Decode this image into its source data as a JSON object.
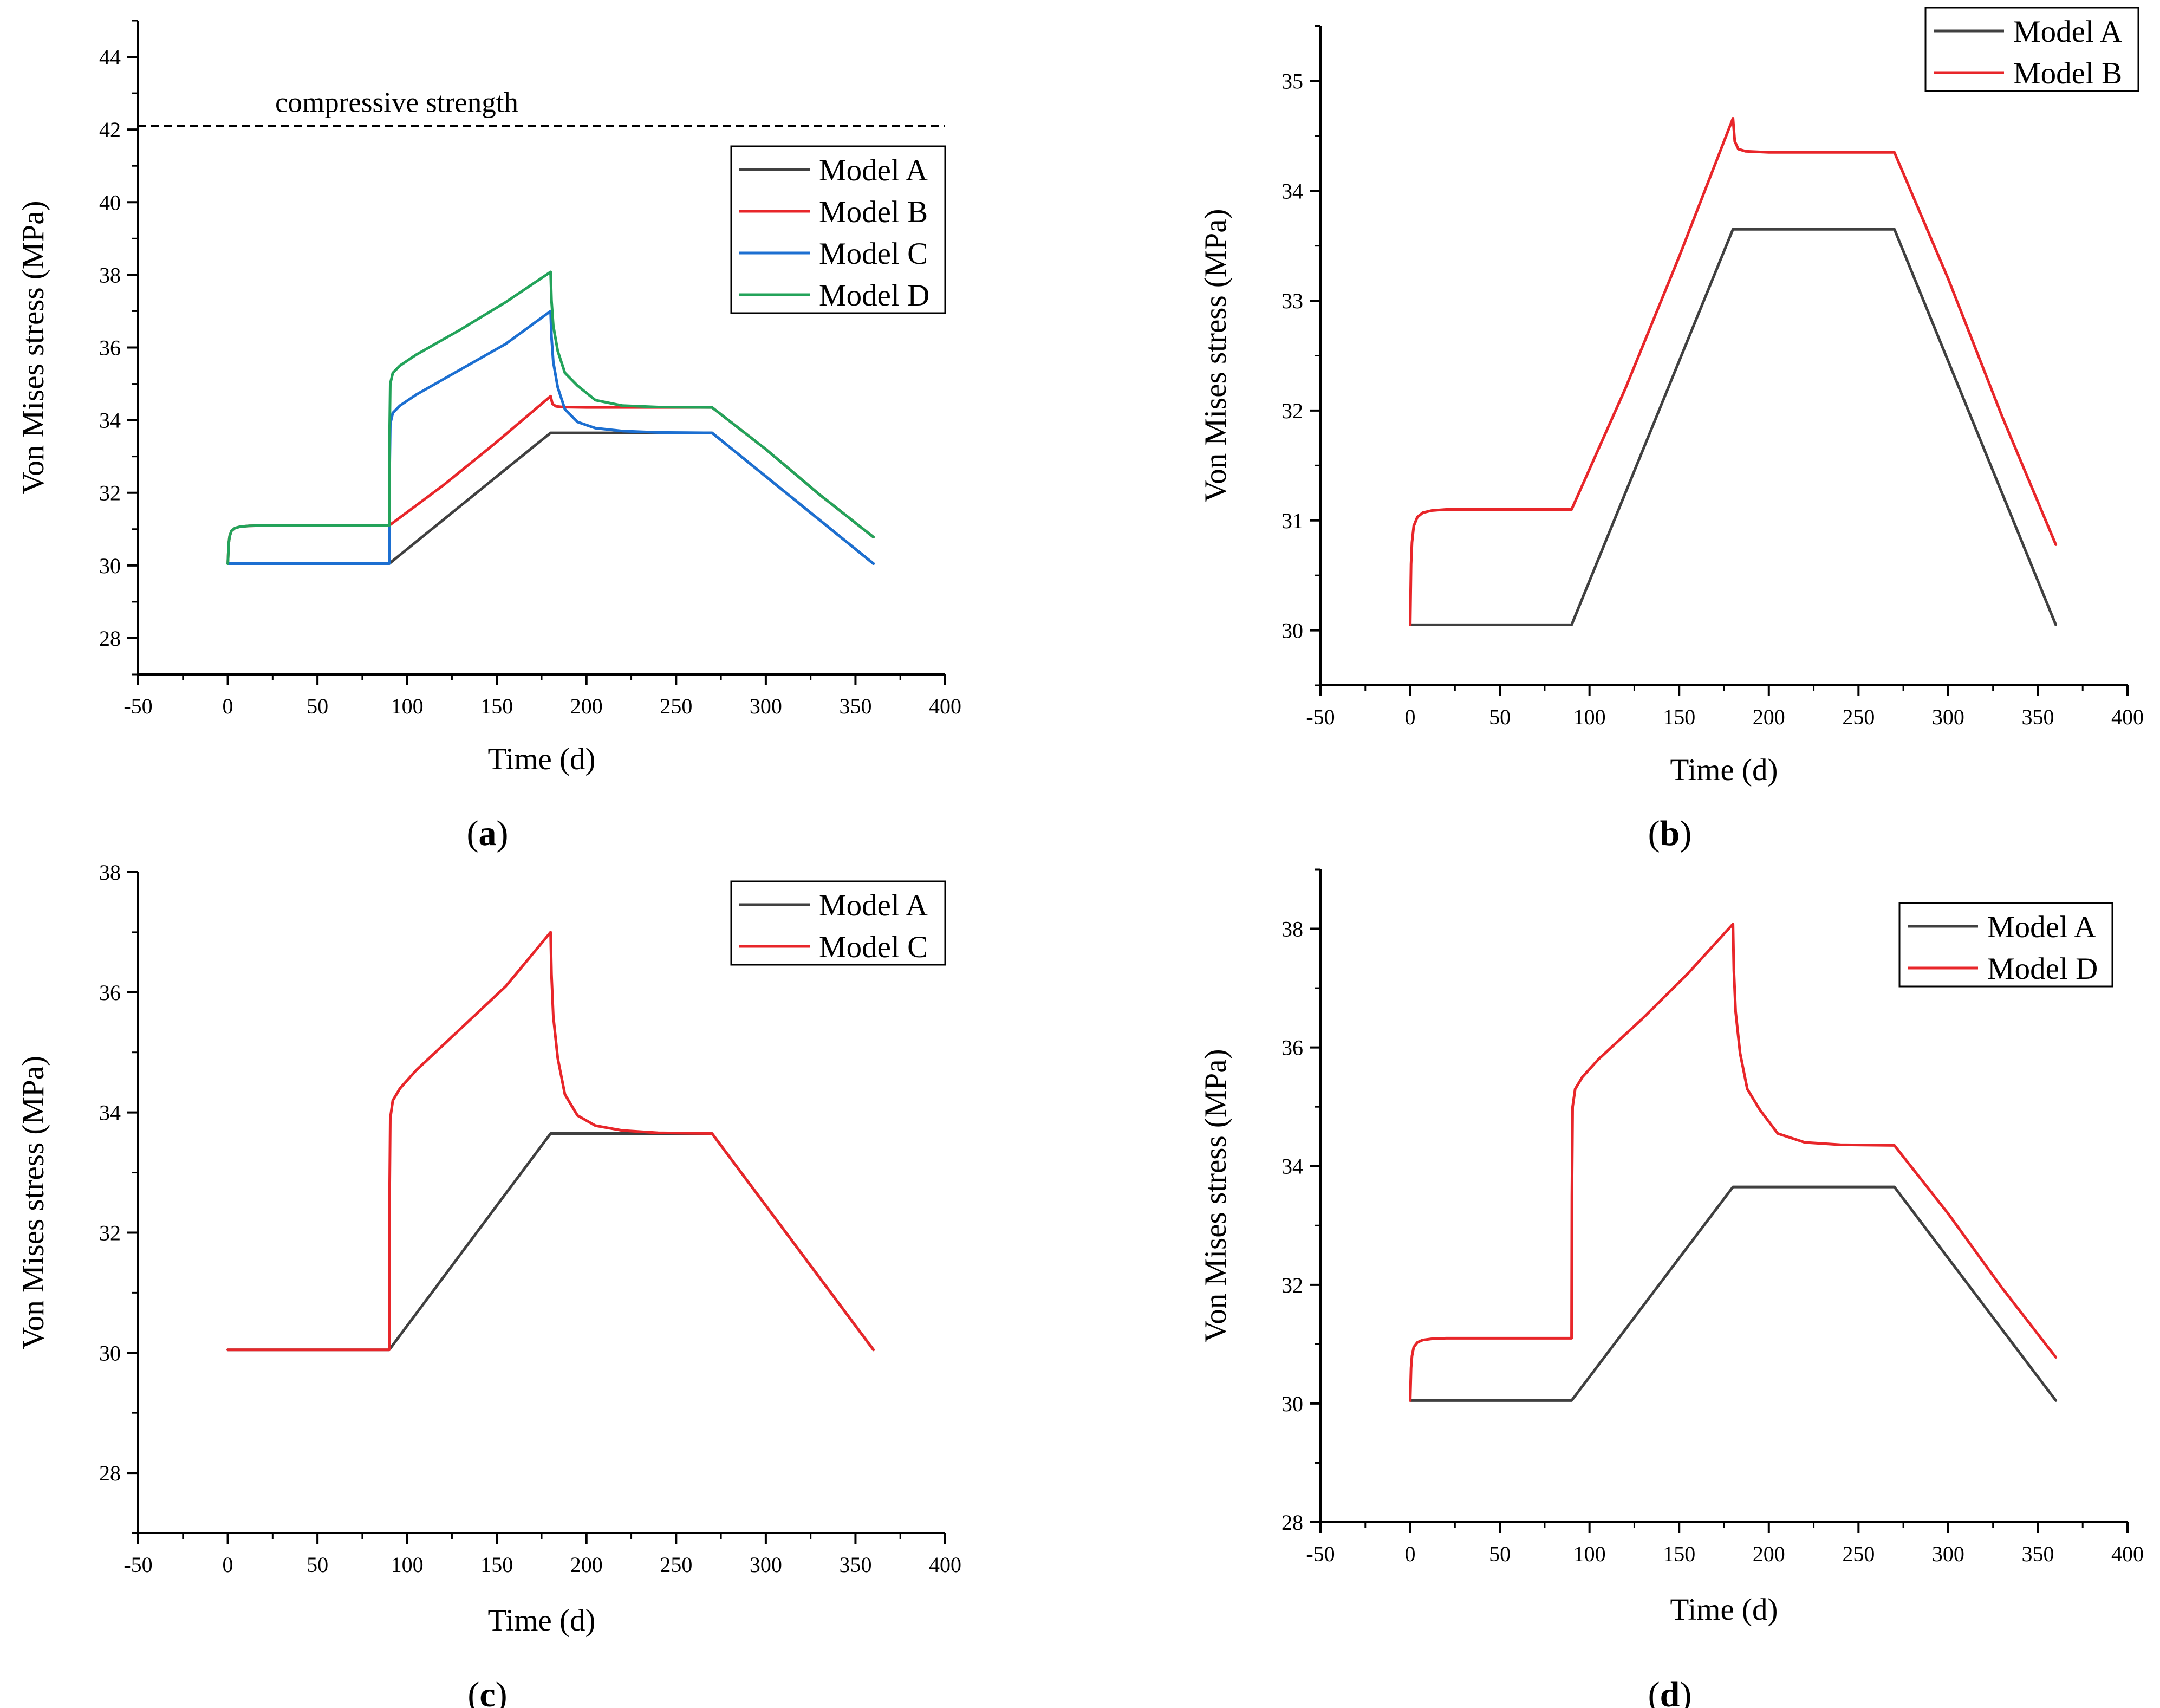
{
  "colors": {
    "Model A": "#404040",
    "Model B": "#e8262a",
    "Model C": "#1c6fd1",
    "Model D": "#23a35a",
    "Model C (panel c)": "#e8262a",
    "Model D (panel d)": "#e8262a",
    "axis": "#000000",
    "reference_line": "#000000"
  },
  "chart_data": [
    {
      "panel": "a",
      "caption_open": "(",
      "caption_letter": "a",
      "caption_close": ")",
      "type": "line",
      "xlabel": "Time (d)",
      "ylabel": "Von Mises stress (MPa)",
      "xlim": [
        -50,
        400
      ],
      "ylim": [
        27,
        45
      ],
      "xticks": [
        -50,
        0,
        50,
        100,
        150,
        200,
        250,
        300,
        350,
        400
      ],
      "yticks": [
        28,
        30,
        32,
        34,
        36,
        38,
        40,
        42,
        44
      ],
      "grid": false,
      "legend_position": "upper-right",
      "annotations": [
        {
          "text": "compressive strength",
          "y": 42.1,
          "style": "dashed-horizontal-line"
        }
      ],
      "series": [
        {
          "name": "Model A",
          "color_key": "Model A",
          "points": [
            [
              0,
              30.05
            ],
            [
              90,
              30.05
            ],
            [
              120,
              31.25
            ],
            [
              150,
              32.45
            ],
            [
              180,
              33.65
            ],
            [
              270,
              33.65
            ],
            [
              300,
              32.45
            ],
            [
              330,
              31.25
            ],
            [
              360,
              30.05
            ]
          ]
        },
        {
          "name": "Model B",
          "color_key": "Model B",
          "points": [
            [
              0,
              30.05
            ],
            [
              0.5,
              30.6
            ],
            [
              1,
              30.8
            ],
            [
              2,
              30.95
            ],
            [
              4,
              31.03
            ],
            [
              7,
              31.07
            ],
            [
              12,
              31.09
            ],
            [
              20,
              31.1
            ],
            [
              90,
              31.1
            ],
            [
              120,
              32.2
            ],
            [
              150,
              33.4
            ],
            [
              180,
              34.66
            ],
            [
              181,
              34.45
            ],
            [
              183,
              34.38
            ],
            [
              187,
              34.36
            ],
            [
              200,
              34.35
            ],
            [
              270,
              34.35
            ],
            [
              300,
              33.2
            ],
            [
              330,
              31.95
            ],
            [
              360,
              30.78
            ]
          ]
        },
        {
          "name": "Model C",
          "color_key": "Model C",
          "points": [
            [
              0,
              30.05
            ],
            [
              90,
              30.05
            ],
            [
              90.2,
              32.5
            ],
            [
              90.6,
              33.9
            ],
            [
              92,
              34.2
            ],
            [
              96,
              34.4
            ],
            [
              105,
              34.7
            ],
            [
              130,
              35.4
            ],
            [
              155,
              36.1
            ],
            [
              180,
              37.0
            ],
            [
              180.5,
              36.3
            ],
            [
              181.5,
              35.6
            ],
            [
              184,
              34.9
            ],
            [
              188,
              34.3
            ],
            [
              195,
              33.95
            ],
            [
              205,
              33.78
            ],
            [
              220,
              33.7
            ],
            [
              240,
              33.66
            ],
            [
              270,
              33.65
            ],
            [
              300,
              32.45
            ],
            [
              330,
              31.25
            ],
            [
              360,
              30.05
            ]
          ]
        },
        {
          "name": "Model D",
          "color_key": "Model D",
          "points": [
            [
              0,
              30.05
            ],
            [
              0.5,
              30.6
            ],
            [
              1,
              30.8
            ],
            [
              2,
              30.95
            ],
            [
              4,
              31.03
            ],
            [
              7,
              31.07
            ],
            [
              12,
              31.09
            ],
            [
              20,
              31.1
            ],
            [
              90,
              31.1
            ],
            [
              90.2,
              33.5
            ],
            [
              90.6,
              35.0
            ],
            [
              92,
              35.3
            ],
            [
              96,
              35.5
            ],
            [
              105,
              35.8
            ],
            [
              130,
              36.5
            ],
            [
              155,
              37.25
            ],
            [
              180,
              38.08
            ],
            [
              180.5,
              37.3
            ],
            [
              181.5,
              36.6
            ],
            [
              184,
              35.9
            ],
            [
              188,
              35.3
            ],
            [
              195,
              34.95
            ],
            [
              205,
              34.55
            ],
            [
              220,
              34.4
            ],
            [
              240,
              34.36
            ],
            [
              270,
              34.35
            ],
            [
              300,
              33.2
            ],
            [
              330,
              31.95
            ],
            [
              360,
              30.78
            ]
          ]
        }
      ]
    },
    {
      "panel": "b",
      "caption_open": "(",
      "caption_letter": "b",
      "caption_close": ")",
      "type": "line",
      "xlabel": "Time (d)",
      "ylabel": "Von Mises stress (MPa)",
      "xlim": [
        -50,
        400
      ],
      "ylim": [
        29.5,
        35.5
      ],
      "xticks": [
        -50,
        0,
        50,
        100,
        150,
        200,
        250,
        300,
        350,
        400
      ],
      "yticks": [
        30,
        31,
        32,
        33,
        34,
        35
      ],
      "grid": false,
      "legend_position": "upper-right",
      "series": [
        {
          "name": "Model A",
          "color_key": "Model A",
          "points": [
            [
              0,
              30.05
            ],
            [
              90,
              30.05
            ],
            [
              120,
              31.25
            ],
            [
              150,
              32.45
            ],
            [
              180,
              33.65
            ],
            [
              270,
              33.65
            ],
            [
              300,
              32.45
            ],
            [
              330,
              31.25
            ],
            [
              360,
              30.05
            ]
          ]
        },
        {
          "name": "Model B",
          "color_key": "Model B",
          "points": [
            [
              0,
              30.05
            ],
            [
              0.5,
              30.6
            ],
            [
              1,
              30.8
            ],
            [
              2,
              30.95
            ],
            [
              4,
              31.03
            ],
            [
              7,
              31.07
            ],
            [
              12,
              31.09
            ],
            [
              20,
              31.1
            ],
            [
              90,
              31.1
            ],
            [
              120,
              32.2
            ],
            [
              150,
              33.4
            ],
            [
              180,
              34.66
            ],
            [
              181,
              34.45
            ],
            [
              183,
              34.38
            ],
            [
              187,
              34.36
            ],
            [
              200,
              34.35
            ],
            [
              270,
              34.35
            ],
            [
              300,
              33.2
            ],
            [
              330,
              31.95
            ],
            [
              360,
              30.78
            ]
          ]
        }
      ]
    },
    {
      "panel": "c",
      "caption_open": "(",
      "caption_letter": "c",
      "caption_close": ")",
      "type": "line",
      "xlabel": "Time (d)",
      "ylabel": "Von Mises stress (MPa)",
      "xlim": [
        -50,
        400
      ],
      "ylim": [
        27,
        38
      ],
      "xticks": [
        -50,
        0,
        50,
        100,
        150,
        200,
        250,
        300,
        350,
        400
      ],
      "yticks": [
        28,
        30,
        32,
        34,
        36,
        38
      ],
      "grid": false,
      "legend_position": "upper-right",
      "series": [
        {
          "name": "Model A",
          "color_key": "Model A",
          "points": [
            [
              0,
              30.05
            ],
            [
              90,
              30.05
            ],
            [
              120,
              31.25
            ],
            [
              150,
              32.45
            ],
            [
              180,
              33.65
            ],
            [
              270,
              33.65
            ],
            [
              300,
              32.45
            ],
            [
              330,
              31.25
            ],
            [
              360,
              30.05
            ]
          ]
        },
        {
          "name": "Model C",
          "color_key": "Model C (panel c)",
          "points": [
            [
              0,
              30.05
            ],
            [
              90,
              30.05
            ],
            [
              90.2,
              32.5
            ],
            [
              90.6,
              33.9
            ],
            [
              92,
              34.2
            ],
            [
              96,
              34.4
            ],
            [
              105,
              34.7
            ],
            [
              130,
              35.4
            ],
            [
              155,
              36.1
            ],
            [
              180,
              37.0
            ],
            [
              180.5,
              36.3
            ],
            [
              181.5,
              35.6
            ],
            [
              184,
              34.9
            ],
            [
              188,
              34.3
            ],
            [
              195,
              33.95
            ],
            [
              205,
              33.78
            ],
            [
              220,
              33.7
            ],
            [
              240,
              33.66
            ],
            [
              270,
              33.65
            ],
            [
              300,
              32.45
            ],
            [
              330,
              31.25
            ],
            [
              360,
              30.05
            ]
          ]
        }
      ]
    },
    {
      "panel": "d",
      "caption_open": "(",
      "caption_letter": "d",
      "caption_close": ")",
      "type": "line",
      "xlabel": "Time (d)",
      "ylabel": "Von Mises stress (MPa)",
      "xlim": [
        -50,
        400
      ],
      "ylim": [
        28,
        39
      ],
      "xticks": [
        -50,
        0,
        50,
        100,
        150,
        200,
        250,
        300,
        350,
        400
      ],
      "yticks": [
        28,
        30,
        32,
        34,
        36,
        38
      ],
      "grid": false,
      "legend_position": "upper-right",
      "series": [
        {
          "name": "Model A",
          "color_key": "Model A",
          "points": [
            [
              0,
              30.05
            ],
            [
              90,
              30.05
            ],
            [
              120,
              31.25
            ],
            [
              150,
              32.45
            ],
            [
              180,
              33.65
            ],
            [
              270,
              33.65
            ],
            [
              300,
              32.45
            ],
            [
              330,
              31.25
            ],
            [
              360,
              30.05
            ]
          ]
        },
        {
          "name": "Model D",
          "color_key": "Model D (panel d)",
          "points": [
            [
              0,
              30.05
            ],
            [
              0.5,
              30.6
            ],
            [
              1,
              30.8
            ],
            [
              2,
              30.95
            ],
            [
              4,
              31.03
            ],
            [
              7,
              31.07
            ],
            [
              12,
              31.09
            ],
            [
              20,
              31.1
            ],
            [
              90,
              31.1
            ],
            [
              90.2,
              33.5
            ],
            [
              90.6,
              35.0
            ],
            [
              92,
              35.3
            ],
            [
              96,
              35.5
            ],
            [
              105,
              35.8
            ],
            [
              130,
              36.5
            ],
            [
              155,
              37.25
            ],
            [
              180,
              38.08
            ],
            [
              180.5,
              37.3
            ],
            [
              181.5,
              36.6
            ],
            [
              184,
              35.9
            ],
            [
              188,
              35.3
            ],
            [
              195,
              34.95
            ],
            [
              205,
              34.55
            ],
            [
              220,
              34.4
            ],
            [
              240,
              34.36
            ],
            [
              270,
              34.35
            ],
            [
              300,
              33.2
            ],
            [
              330,
              31.95
            ],
            [
              360,
              30.78
            ]
          ]
        }
      ]
    }
  ]
}
